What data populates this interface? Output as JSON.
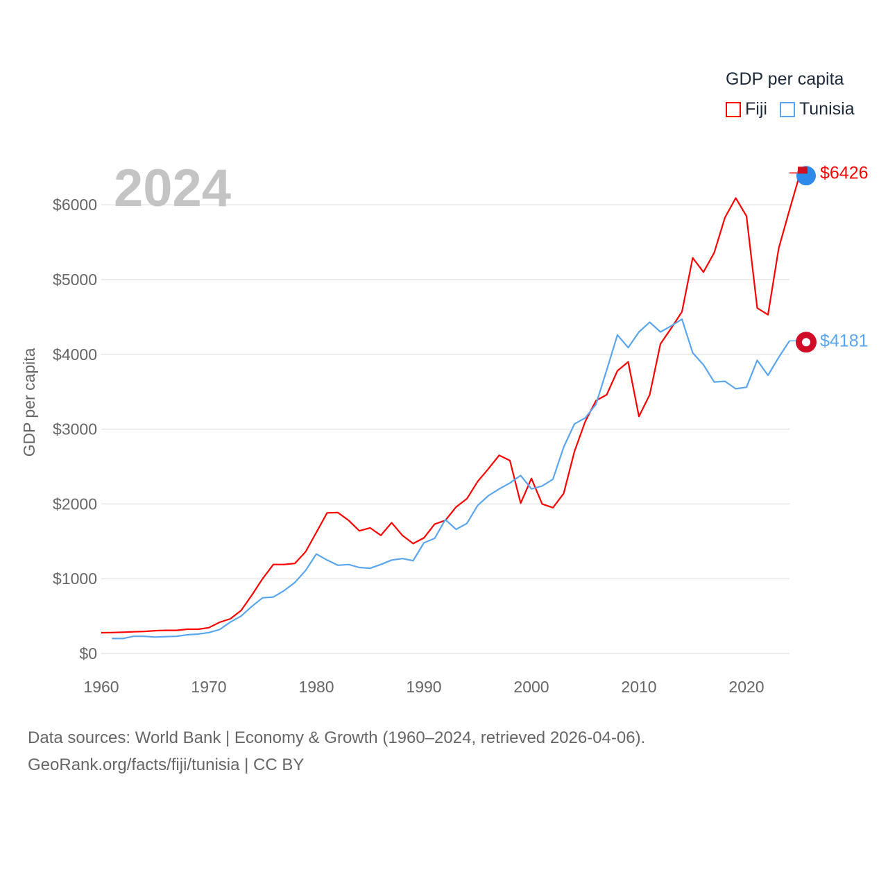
{
  "chart_data": {
    "type": "line",
    "title": "GDP per capita",
    "ylabel": "GDP per capita",
    "xlabel": "",
    "year_label": "2024",
    "xlim": [
      1960,
      2024
    ],
    "ylim": [
      0,
      6500
    ],
    "x_ticks": [
      "1960",
      "1970",
      "1980",
      "1990",
      "2000",
      "2010",
      "2020"
    ],
    "y_ticks": [
      "$0",
      "$1000",
      "$2000",
      "$3000",
      "$4000",
      "$5000",
      "$6000"
    ],
    "y_tick_values": [
      0,
      1000,
      2000,
      3000,
      4000,
      5000,
      6000
    ],
    "grid": true,
    "legend_position": "top-right",
    "series": [
      {
        "name": "Fiji",
        "color": "#ff0000",
        "end_label": "$6426",
        "start_year": 1960,
        "values": [
          278,
          280,
          285,
          290,
          295,
          305,
          310,
          310,
          325,
          325,
          345,
          417,
          464,
          575,
          780,
          1000,
          1190,
          1190,
          1205,
          1360,
          1620,
          1880,
          1885,
          1780,
          1640,
          1680,
          1580,
          1750,
          1580,
          1470,
          1545,
          1730,
          1780,
          1960,
          2070,
          2300,
          2470,
          2650,
          2580,
          2010,
          2340,
          2000,
          1950,
          2140,
          2700,
          3100,
          3380,
          3460,
          3780,
          3900,
          3170,
          3460,
          4140,
          4350,
          4570,
          5290,
          5100,
          5360,
          5830,
          6090,
          5850,
          4620,
          4530,
          5420,
          5930,
          6426
        ]
      },
      {
        "name": "Tunisia",
        "color": "#5aa6ee",
        "end_label": "$4181",
        "start_year": 1961,
        "values": [
          200,
          200,
          230,
          230,
          220,
          225,
          230,
          250,
          260,
          280,
          320,
          420,
          500,
          630,
          745,
          755,
          840,
          950,
          1110,
          1330,
          1250,
          1180,
          1190,
          1150,
          1140,
          1190,
          1250,
          1270,
          1240,
          1480,
          1540,
          1790,
          1660,
          1740,
          1980,
          2110,
          2200,
          2280,
          2380,
          2200,
          2240,
          2330,
          2760,
          3070,
          3150,
          3330,
          3790,
          4260,
          4090,
          4300,
          4430,
          4300,
          4380,
          4470,
          4020,
          3860,
          3630,
          3640,
          3540,
          3560,
          3920,
          3720,
          3960,
          4181
        ]
      }
    ]
  },
  "footer": {
    "line1": "Data sources: World Bank | Economy & Growth (1960–2024, retrieved 2026-04-06).",
    "line2": "GeoRank.org/facts/fiji/tunisia | CC BY"
  }
}
